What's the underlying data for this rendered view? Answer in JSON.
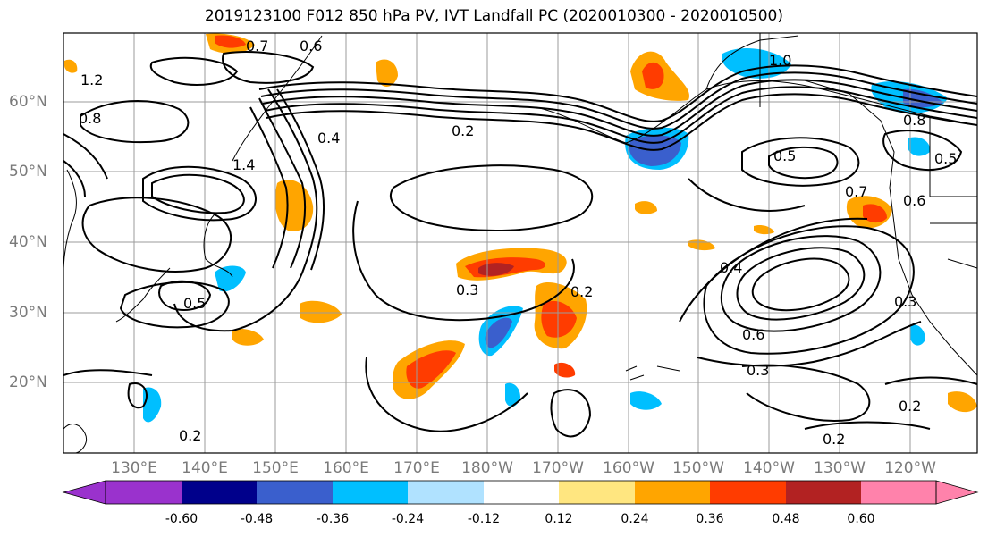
{
  "title": "2019123100 F012 850 hPa PV, IVT Landfall PC (2020010300 - 2020010500)",
  "lat_labels": [
    "60°N",
    "50°N",
    "40°N",
    "30°N",
    "20°N"
  ],
  "lon_labels": [
    "130°E",
    "140°E",
    "150°E",
    "160°E",
    "170°E",
    "180°W",
    "170°W",
    "160°W",
    "150°W",
    "140°W",
    "130°W",
    "120°W"
  ],
  "contour_labels": [
    "0.2",
    "0.2",
    "0.2",
    "0.2",
    "0.2",
    "0.3",
    "0.3",
    "0.3",
    "0.4",
    "0.4",
    "0.5",
    "0.5",
    "0.5",
    "0.6",
    "0.6",
    "0.6",
    "0.7",
    "0.7",
    "0.8",
    "0.8",
    "1.0",
    "1.2",
    "1.4"
  ],
  "colorbar": {
    "ticks": [
      "-0.60",
      "-0.48",
      "-0.36",
      "-0.24",
      "-0.12",
      "0.12",
      "0.24",
      "0.36",
      "0.48",
      "0.60"
    ],
    "colors": [
      "#9a32cd",
      "#00008b",
      "#3a5fcd",
      "#00bfff",
      "#b0e2ff",
      "#ffffff",
      "#ffe680",
      "#ffa500",
      "#ff3c00",
      "#b22222",
      "#ff82ab"
    ]
  }
}
